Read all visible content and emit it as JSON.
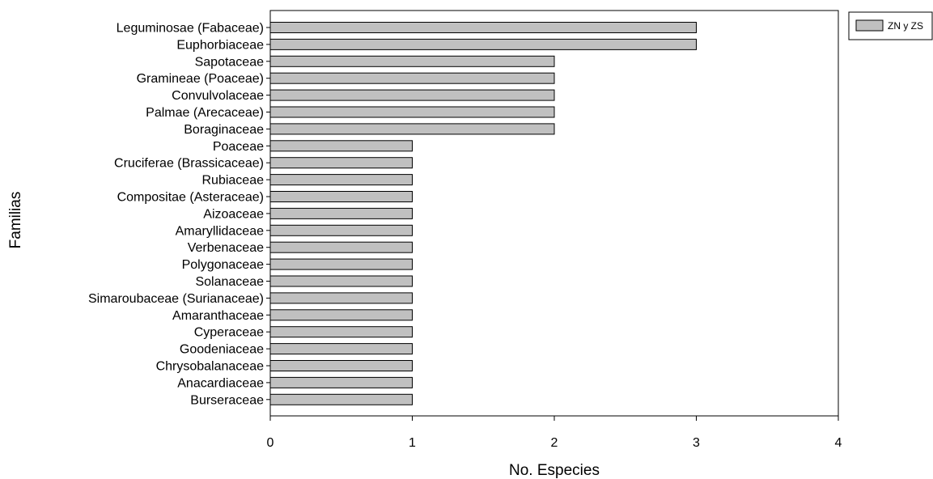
{
  "chart_data": {
    "type": "bar",
    "orientation": "horizontal",
    "categories": [
      "Leguminosae (Fabaceae)",
      "Euphorbiaceae",
      "Sapotaceae",
      "Gramineae (Poaceae)",
      "Convulvolaceae",
      "Palmae (Arecaceae)",
      "Boraginaceae",
      "Poaceae",
      "Cruciferae (Brassicaceae)",
      "Rubiaceae",
      "Compositae (Asteraceae)",
      "Aizoaceae",
      "Amaryllidaceae",
      "Verbenaceae",
      "Polygonaceae",
      "Solanaceae",
      "Simaroubaceae (Surianaceae)",
      "Amaranthaceae",
      "Cyperaceae",
      "Goodeniaceae",
      "Chrysobalanaceae",
      "Anacardiaceae",
      "Burseraceae"
    ],
    "series": [
      {
        "name": "ZN y ZS",
        "color": "#c0c0c0",
        "values": [
          3,
          3,
          2,
          2,
          2,
          2,
          2,
          1,
          1,
          1,
          1,
          1,
          1,
          1,
          1,
          1,
          1,
          1,
          1,
          1,
          1,
          1,
          1
        ]
      }
    ],
    "xlabel": "No. Especies",
    "ylabel": "Familias",
    "xlim": [
      0,
      4
    ],
    "xticks": [
      0,
      1,
      2,
      3,
      4
    ],
    "grid": false,
    "legend_position": "top-right, outside plot"
  }
}
